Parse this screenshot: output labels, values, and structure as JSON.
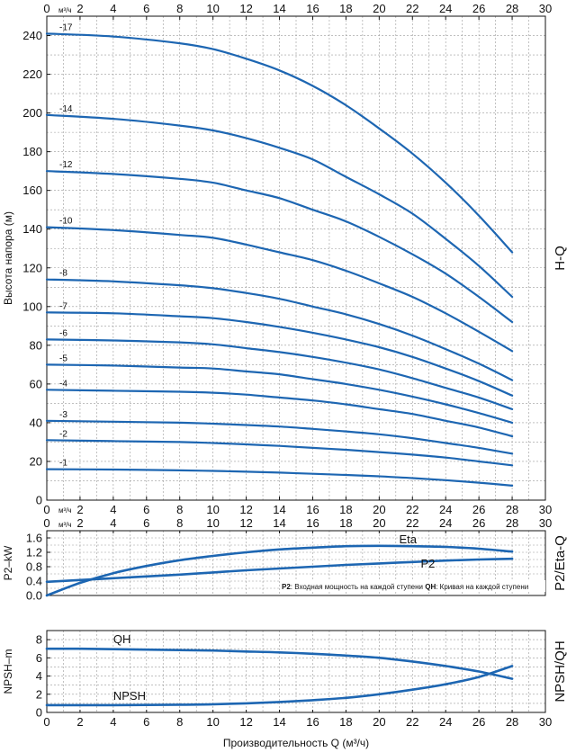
{
  "chart_data": [
    {
      "id": "hq",
      "type": "line",
      "side_title": "H-Q",
      "ylabel": "Высота напора (м)",
      "xlim": [
        0,
        30
      ],
      "ylim": [
        0,
        250
      ],
      "x_ticks": [
        "0",
        "2",
        "4",
        "6",
        "8",
        "10",
        "12",
        "14",
        "16",
        "18",
        "20",
        "22",
        "24",
        "26",
        "28",
        "30"
      ],
      "x_unit_label": "м³/ч",
      "y_ticks": [
        "0",
        "20",
        "40",
        "60",
        "80",
        "100",
        "120",
        "140",
        "160",
        "180",
        "200",
        "220",
        "240"
      ],
      "grid": true,
      "x": [
        0,
        4,
        8,
        10,
        12,
        14,
        16,
        18,
        20,
        22,
        24,
        26,
        28
      ],
      "series": [
        {
          "name": "-17",
          "values": [
            241,
            239.5,
            236,
            233,
            228,
            222,
            214,
            204,
            192,
            179,
            164,
            147,
            128
          ]
        },
        {
          "name": "-14",
          "values": [
            199,
            197,
            193.5,
            191,
            187,
            182,
            176,
            167,
            158,
            148,
            135,
            121,
            105
          ]
        },
        {
          "name": "-12",
          "values": [
            170,
            168.5,
            166,
            164,
            160,
            156,
            150,
            144,
            136,
            127,
            117,
            105,
            92
          ]
        },
        {
          "name": "-10",
          "values": [
            141,
            139.5,
            137,
            135.5,
            132,
            128,
            124,
            118.5,
            112,
            105,
            96.5,
            87,
            77
          ]
        },
        {
          "name": "-8",
          "values": [
            114,
            113,
            111,
            109.5,
            107,
            104,
            100,
            96,
            91,
            85,
            78,
            70.5,
            62
          ]
        },
        {
          "name": "-7",
          "values": [
            97,
            96.5,
            95,
            94,
            92,
            89.5,
            86.5,
            83,
            79,
            74,
            68,
            61.5,
            54
          ]
        },
        {
          "name": "-6",
          "values": [
            83,
            82.5,
            81.5,
            80.5,
            78.5,
            76.5,
            74,
            71,
            67.5,
            63,
            58,
            53,
            47
          ]
        },
        {
          "name": "-5",
          "values": [
            70,
            69.5,
            68.5,
            68,
            66.5,
            65,
            62.5,
            60,
            57,
            53.5,
            49.5,
            45,
            40
          ]
        },
        {
          "name": "-4",
          "values": [
            57,
            56.5,
            56,
            55.5,
            54.5,
            53,
            51.5,
            49.5,
            47,
            44.5,
            41,
            37.5,
            33
          ]
        },
        {
          "name": "-3",
          "values": [
            41,
            40.5,
            40,
            39.5,
            38.8,
            38,
            36.8,
            35.5,
            34,
            32,
            29.5,
            27,
            24
          ]
        },
        {
          "name": "-2",
          "values": [
            31,
            30.5,
            30,
            29.5,
            28.8,
            28,
            27,
            26,
            24.8,
            23.5,
            22,
            20,
            18
          ]
        },
        {
          "name": "-1",
          "values": [
            16,
            15.8,
            15.4,
            15.1,
            14.7,
            14.2,
            13.6,
            13,
            12.3,
            11.4,
            10.3,
            9,
            7.5
          ]
        }
      ]
    },
    {
      "id": "p2eta",
      "type": "line",
      "side_title": "P2/Eta-Q",
      "ylabel": "P2–kW",
      "xlim": [
        0,
        30
      ],
      "ylim": [
        0,
        1.8
      ],
      "x_ticks": [
        "0",
        "2",
        "4",
        "6",
        "8",
        "10",
        "12",
        "14",
        "16",
        "18",
        "20",
        "22",
        "24",
        "26",
        "28",
        "30"
      ],
      "x_unit_label": "м³/ч",
      "y_ticks": [
        "0.0",
        "0.4",
        "0.8",
        "1.2",
        "1.6"
      ],
      "grid": true,
      "x": [
        0,
        2,
        4,
        6,
        8,
        10,
        12,
        14,
        16,
        18,
        20,
        22,
        24,
        26,
        28
      ],
      "series": [
        {
          "name": "Eta",
          "values": [
            0.0,
            0.35,
            0.62,
            0.82,
            0.98,
            1.1,
            1.2,
            1.28,
            1.33,
            1.37,
            1.38,
            1.37,
            1.35,
            1.3,
            1.22
          ]
        },
        {
          "name": "P2",
          "values": [
            0.38,
            0.43,
            0.48,
            0.53,
            0.58,
            0.64,
            0.7,
            0.75,
            0.8,
            0.85,
            0.89,
            0.93,
            0.97,
            1.0,
            1.02
          ]
        }
      ],
      "annotation_bold": "P2",
      "annotation_mid": ": Входная мощность на каждой ступени",
      "annotation_bold2": "QH",
      "annotation_end": ": Кривая на каждой ступени"
    },
    {
      "id": "npsh",
      "type": "line",
      "side_title": "NPSH/QH",
      "ylabel": "NPSH–m",
      "xlabel": "Производительность Q (м³/ч)",
      "xlim": [
        0,
        30
      ],
      "ylim": [
        0,
        9
      ],
      "x_ticks": [
        "0",
        "2",
        "4",
        "6",
        "8",
        "10",
        "12",
        "14",
        "16",
        "18",
        "20",
        "22",
        "24",
        "26",
        "28",
        "30"
      ],
      "y_ticks": [
        "0",
        "2",
        "4",
        "6",
        "8"
      ],
      "grid": true,
      "x": [
        0,
        2,
        4,
        6,
        8,
        10,
        12,
        14,
        16,
        18,
        20,
        22,
        24,
        26,
        28
      ],
      "series": [
        {
          "name": "QH",
          "values": [
            7.0,
            7.0,
            6.95,
            6.9,
            6.85,
            6.8,
            6.7,
            6.6,
            6.45,
            6.25,
            6.0,
            5.6,
            5.1,
            4.5,
            3.7
          ]
        },
        {
          "name": "NPSH",
          "values": [
            0.8,
            0.8,
            0.8,
            0.82,
            0.85,
            0.9,
            1.0,
            1.15,
            1.35,
            1.6,
            2.0,
            2.5,
            3.1,
            3.9,
            5.1
          ]
        }
      ]
    }
  ]
}
